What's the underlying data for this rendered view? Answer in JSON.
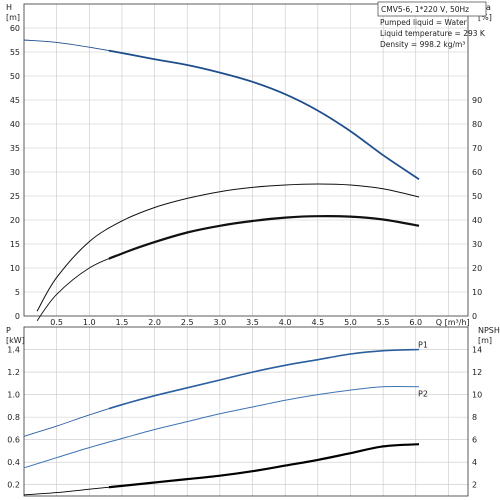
{
  "colors": {
    "head_curve": "#1f4e8c",
    "p1_curve": "#2b5fa0",
    "p2_curve": "#3d74b5",
    "efficiency_curve": "#111111",
    "npsh_curve": "#000000",
    "grid": "#c8c8c8"
  },
  "info_box": {
    "title": "CMV5-6, 1*220 V, 50Hz",
    "line1": "Pumped liquid = Water",
    "line2": "Liquid temperature = 293 K",
    "line3": "Density = 998.2 kg/m³"
  },
  "chart_data": [
    {
      "type": "line",
      "title": "",
      "xlabel": "Q [m³/h]",
      "x_ticks": [
        "0.5",
        "1.0",
        "1.5",
        "2.0",
        "2.5",
        "3.0",
        "3.5",
        "4.0",
        "4.5",
        "5.0",
        "5.5",
        "6.0"
      ],
      "xlim": [
        0,
        6.8
      ],
      "ylabel_left": "H [m]",
      "y_left_ticks": [
        "0",
        "5",
        "10",
        "15",
        "20",
        "25",
        "30",
        "35",
        "40",
        "45",
        "50",
        "55",
        "60"
      ],
      "ylim_left": [
        0,
        65
      ],
      "ylabel_right": "eta [%]",
      "y_right_ticks": [
        "0",
        "10",
        "20",
        "30",
        "40",
        "50",
        "60",
        "70",
        "80",
        "90"
      ],
      "ylim_right": [
        0,
        130
      ],
      "grid": true,
      "series": [
        {
          "axis": "left",
          "color_key": "head_curve",
          "width": 1.8,
          "x": [
            0,
            0.5,
            1.0,
            1.5,
            2.0,
            2.5,
            3.0,
            3.5,
            4.0,
            4.5,
            5.0,
            5.5,
            6.05
          ],
          "y": [
            57.5,
            57.0,
            56.0,
            54.8,
            53.5,
            52.3,
            50.7,
            48.8,
            46.2,
            42.8,
            38.5,
            33.5,
            28.5
          ],
          "thin_prefix_x": 1.3
        },
        {
          "axis": "left",
          "color_key": "efficiency_curve",
          "width": 1.0,
          "x": [
            0.2,
            0.5,
            1.0,
            1.5,
            2.0,
            2.5,
            3.0,
            3.5,
            4.0,
            4.5,
            5.0,
            5.5,
            6.05
          ],
          "y": [
            1.0,
            8.0,
            15.5,
            19.8,
            22.6,
            24.5,
            25.9,
            26.8,
            27.3,
            27.5,
            27.3,
            26.5,
            24.8
          ]
        },
        {
          "axis": "left",
          "color_key": "efficiency_curve",
          "width": 2.2,
          "x": [
            0.2,
            0.5,
            1.0,
            1.5,
            2.0,
            2.5,
            3.0,
            3.5,
            4.0,
            4.5,
            5.0,
            5.5,
            6.05
          ],
          "y": [
            -1.0,
            4.5,
            10.0,
            13.0,
            15.4,
            17.4,
            18.8,
            19.8,
            20.5,
            20.8,
            20.7,
            20.1,
            18.8
          ],
          "thin_prefix_x": 1.3
        }
      ]
    },
    {
      "type": "line",
      "title": "",
      "xlabel": "",
      "xlim": [
        0,
        6.8
      ],
      "ylabel_left": "P [kW]",
      "y_left_ticks": [
        "0.2",
        "0.4",
        "0.6",
        "0.8",
        "1.0",
        "1.2",
        "1.4"
      ],
      "ylim_left": [
        0.1,
        1.6
      ],
      "ylabel_right": "NPSH [m]",
      "y_right_ticks": [
        "2",
        "4",
        "6",
        "8",
        "10",
        "12",
        "14"
      ],
      "ylim_right": [
        1,
        16
      ],
      "grid": true,
      "series": [
        {
          "name": "P1",
          "axis": "left",
          "color_key": "p1_curve",
          "width": 1.6,
          "x": [
            0,
            0.5,
            1.0,
            1.5,
            2.0,
            2.5,
            3.0,
            3.5,
            4.0,
            4.5,
            5.0,
            5.5,
            6.05
          ],
          "y": [
            0.63,
            0.72,
            0.82,
            0.91,
            0.99,
            1.06,
            1.13,
            1.2,
            1.26,
            1.31,
            1.36,
            1.39,
            1.4
          ],
          "thin_prefix_x": 1.3
        },
        {
          "name": "P2",
          "axis": "left",
          "color_key": "p2_curve",
          "width": 1.0,
          "x": [
            0,
            0.5,
            1.0,
            1.5,
            2.0,
            2.5,
            3.0,
            3.5,
            4.0,
            4.5,
            5.0,
            5.5,
            6.05
          ],
          "y": [
            0.35,
            0.44,
            0.53,
            0.61,
            0.69,
            0.76,
            0.83,
            0.89,
            0.95,
            1.0,
            1.04,
            1.07,
            1.07
          ]
        },
        {
          "axis": "right",
          "color_key": "npsh_curve",
          "width": 2.2,
          "x": [
            0,
            0.5,
            1.0,
            1.5,
            2.0,
            2.5,
            3.0,
            3.5,
            4.0,
            4.5,
            5.0,
            5.5,
            6.05
          ],
          "y": [
            1.1,
            1.3,
            1.6,
            1.9,
            2.2,
            2.5,
            2.8,
            3.2,
            3.7,
            4.2,
            4.8,
            5.4,
            5.6
          ],
          "thin_prefix_x": 1.3
        }
      ]
    }
  ]
}
